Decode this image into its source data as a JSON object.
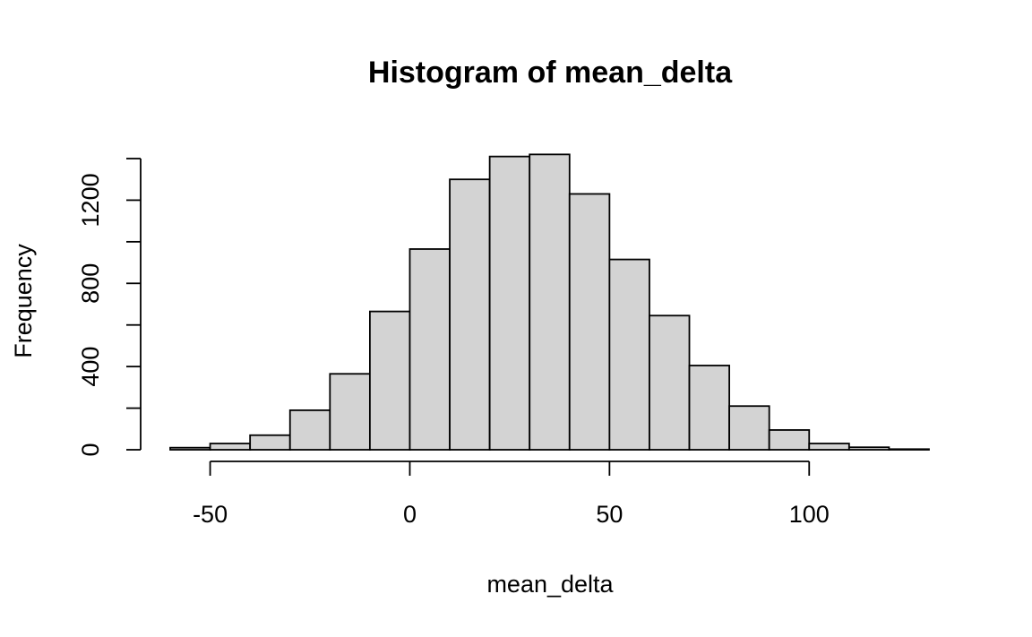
{
  "chart_data": {
    "type": "bar",
    "title": "Histogram of mean_delta",
    "xlabel": "mean_delta",
    "ylabel": "Frequency",
    "bin_edges": [
      -60,
      -50,
      -40,
      -30,
      -20,
      -10,
      0,
      10,
      20,
      30,
      40,
      50,
      60,
      70,
      80,
      90,
      100,
      110,
      120,
      130
    ],
    "values": [
      10,
      30,
      70,
      190,
      365,
      665,
      965,
      1300,
      1410,
      1420,
      1230,
      915,
      645,
      405,
      210,
      95,
      30,
      12,
      3
    ],
    "xticks": [
      -50,
      0,
      50,
      100
    ],
    "yticks": [
      0,
      400,
      800,
      1200
    ],
    "xlim": [
      -60,
      130
    ],
    "ylim": [
      0,
      1400
    ],
    "grid": false,
    "colors": {
      "bar_fill": "#d3d3d3",
      "bar_stroke": "#000000"
    }
  }
}
